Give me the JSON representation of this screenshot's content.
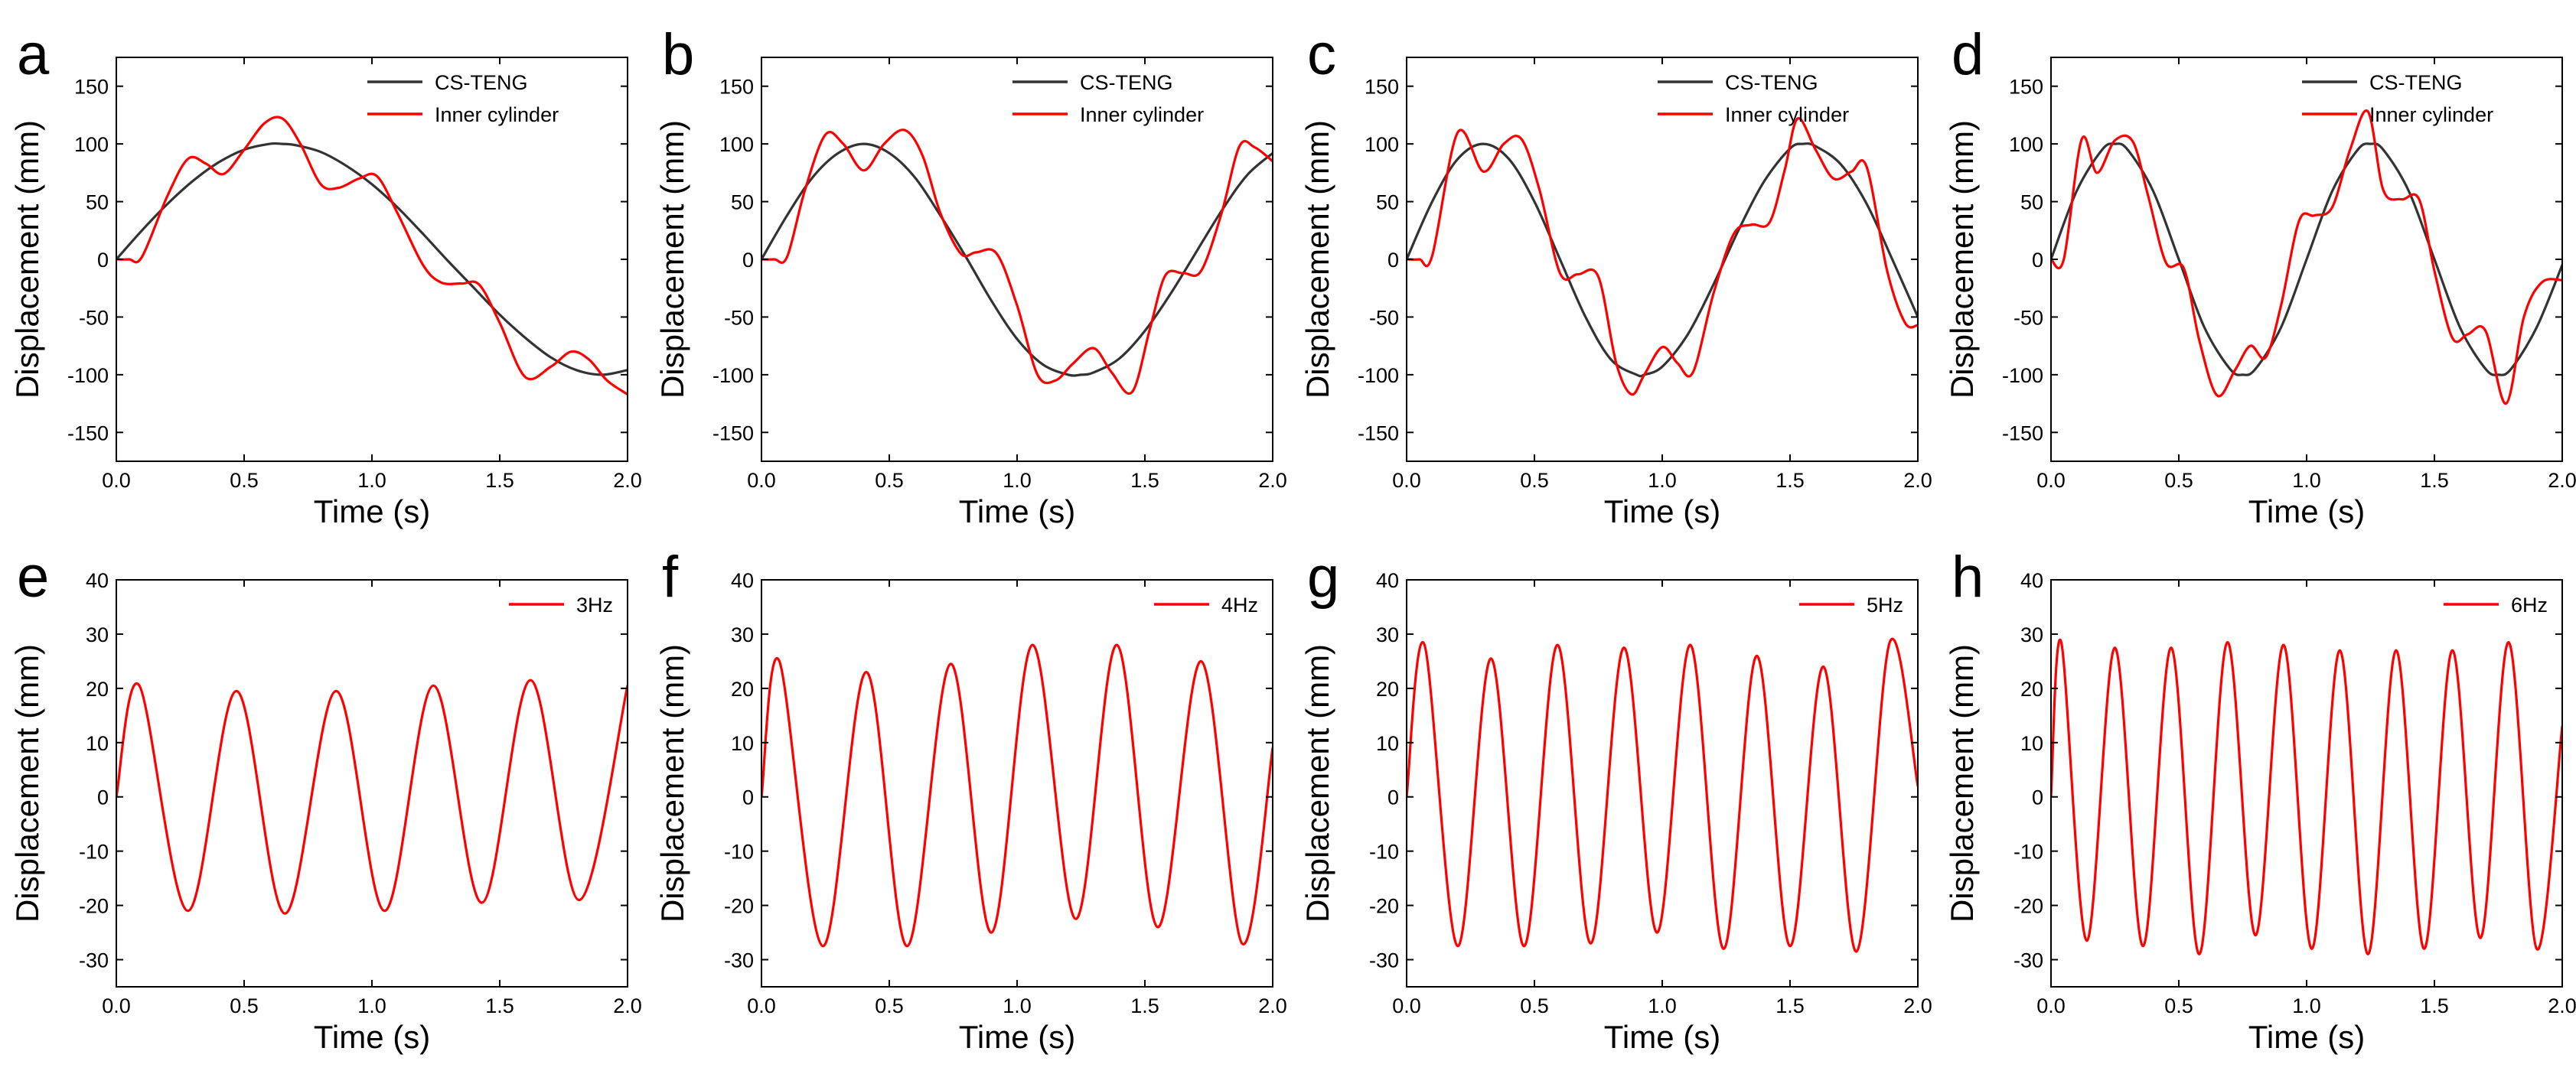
{
  "figure": {
    "background": "#ffffff"
  },
  "colors": {
    "cs_teng": "#333333",
    "inner_cylinder": "#ff0000",
    "axis": "#000000"
  },
  "chart_data": [
    {
      "panel": "a",
      "type": "line",
      "xlabel": "Time (s)",
      "ylabel": "Displacement (mm)",
      "xlim": [
        0,
        2
      ],
      "ylim": [
        -175,
        175
      ],
      "xticks": [
        0,
        0.5,
        1,
        1.5,
        2
      ],
      "xtick_labels": [
        "0.0",
        "0.5",
        "1.0",
        "1.5",
        "2.0"
      ],
      "yticks": [
        -150,
        -100,
        -50,
        0,
        50,
        100,
        150
      ],
      "ytick_labels": [
        "-150",
        "-100",
        "-50",
        "0",
        "50",
        "100",
        "150"
      ],
      "legend_position": "top-right",
      "series": [
        {
          "name": "CS-TENG",
          "color": "#333333",
          "x": [
            0,
            0.1,
            0.2,
            0.3,
            0.4,
            0.5,
            0.6,
            0.65,
            0.7,
            0.8,
            0.9,
            1.0,
            1.1,
            1.2,
            1.3,
            1.4,
            1.5,
            1.6,
            1.7,
            1.8,
            1.9,
            2.0
          ],
          "y": [
            0,
            25,
            48,
            68,
            84,
            95,
            100,
            100,
            99,
            93,
            81,
            65,
            45,
            22,
            -2,
            -25,
            -48,
            -68,
            -85,
            -96,
            -100,
            -96
          ]
        },
        {
          "name": "Inner cylinder",
          "color": "#ff0000",
          "x": [
            0,
            0.05,
            0.1,
            0.2,
            0.28,
            0.35,
            0.42,
            0.5,
            0.58,
            0.65,
            0.72,
            0.8,
            0.87,
            0.95,
            1.02,
            1.1,
            1.2,
            1.27,
            1.35,
            1.42,
            1.5,
            1.6,
            1.7,
            1.78,
            1.85,
            1.92,
            2.0
          ],
          "y": [
            0,
            0,
            2,
            55,
            87,
            83,
            74,
            95,
            118,
            122,
            100,
            65,
            62,
            70,
            72,
            40,
            -5,
            -20,
            -21,
            -22,
            -55,
            -102,
            -93,
            -80,
            -87,
            -105,
            -117
          ]
        }
      ]
    },
    {
      "panel": "b",
      "type": "line",
      "xlabel": "Time (s)",
      "ylabel": "Displacement (mm)",
      "xlim": [
        0,
        2
      ],
      "ylim": [
        -175,
        175
      ],
      "xticks": [
        0,
        0.5,
        1,
        1.5,
        2
      ],
      "xtick_labels": [
        "0.0",
        "0.5",
        "1.0",
        "1.5",
        "2.0"
      ],
      "yticks": [
        -150,
        -100,
        -50,
        0,
        50,
        100,
        150
      ],
      "ytick_labels": [
        "-150",
        "-100",
        "-50",
        "0",
        "50",
        "100",
        "150"
      ],
      "legend_position": "top-right",
      "series": [
        {
          "name": "CS-TENG",
          "color": "#333333",
          "x": [
            0,
            0.1,
            0.2,
            0.3,
            0.4,
            0.5,
            0.6,
            0.7,
            0.8,
            0.9,
            1.0,
            1.1,
            1.2,
            1.25,
            1.3,
            1.4,
            1.5,
            1.6,
            1.7,
            1.8,
            1.9,
            2.0
          ],
          "y": [
            0,
            38,
            71,
            92,
            100,
            92,
            71,
            38,
            2,
            -36,
            -69,
            -91,
            -100,
            -100,
            -98,
            -86,
            -62,
            -30,
            6,
            42,
            73,
            92
          ]
        },
        {
          "name": "Inner cylinder",
          "color": "#ff0000",
          "x": [
            0,
            0.05,
            0.1,
            0.17,
            0.25,
            0.32,
            0.4,
            0.48,
            0.56,
            0.63,
            0.7,
            0.78,
            0.84,
            0.92,
            1.0,
            1.08,
            1.15,
            1.22,
            1.3,
            1.37,
            1.45,
            1.52,
            1.58,
            1.65,
            1.72,
            1.8,
            1.87,
            1.93,
            2.0
          ],
          "y": [
            0,
            0,
            2,
            60,
            108,
            100,
            77,
            100,
            112,
            90,
            40,
            5,
            6,
            5,
            -40,
            -100,
            -105,
            -90,
            -77,
            -98,
            -115,
            -60,
            -14,
            -12,
            -10,
            40,
            98,
            97,
            85
          ]
        }
      ]
    },
    {
      "panel": "c",
      "type": "line",
      "xlabel": "Time (s)",
      "ylabel": "Displacement (mm)",
      "xlim": [
        0,
        2
      ],
      "ylim": [
        -175,
        175
      ],
      "xticks": [
        0,
        0.5,
        1,
        1.5,
        2
      ],
      "xtick_labels": [
        "0.0",
        "0.5",
        "1.0",
        "1.5",
        "2.0"
      ],
      "yticks": [
        -150,
        -100,
        -50,
        0,
        50,
        100,
        150
      ],
      "ytick_labels": [
        "-150",
        "-100",
        "-50",
        "0",
        "50",
        "100",
        "150"
      ],
      "legend_position": "top-right",
      "series": [
        {
          "name": "CS-TENG",
          "color": "#333333",
          "x": [
            0,
            0.1,
            0.2,
            0.3,
            0.4,
            0.5,
            0.6,
            0.7,
            0.8,
            0.9,
            0.93,
            1.0,
            1.1,
            1.2,
            1.3,
            1.4,
            1.5,
            1.55,
            1.6,
            1.7,
            1.8,
            1.9,
            2.0
          ],
          "y": [
            0,
            50,
            87,
            100,
            87,
            50,
            0,
            -50,
            -87,
            -100,
            -100,
            -93,
            -65,
            -22,
            26,
            68,
            96,
            100,
            98,
            82,
            48,
            0,
            -50
          ]
        },
        {
          "name": "Inner cylinder",
          "color": "#ff0000",
          "x": [
            0,
            0.05,
            0.1,
            0.2,
            0.3,
            0.38,
            0.45,
            0.52,
            0.6,
            0.67,
            0.75,
            0.82,
            0.88,
            0.93,
            1.0,
            1.06,
            1.12,
            1.2,
            1.28,
            1.35,
            1.42,
            1.48,
            1.53,
            1.6,
            1.67,
            1.74,
            1.8,
            1.88,
            1.95,
            2.0
          ],
          "y": [
            0,
            0,
            3,
            110,
            76,
            100,
            104,
            60,
            -12,
            -13,
            -15,
            -90,
            -117,
            -100,
            -76,
            -90,
            -98,
            -30,
            22,
            30,
            32,
            78,
            122,
            95,
            70,
            76,
            80,
            -10,
            -55,
            -57
          ]
        }
      ]
    },
    {
      "panel": "d",
      "type": "line",
      "xlabel": "Time (s)",
      "ylabel": "Displacement (mm)",
      "xlim": [
        0,
        2
      ],
      "ylim": [
        -175,
        175
      ],
      "xticks": [
        0,
        0.5,
        1,
        1.5,
        2
      ],
      "xtick_labels": [
        "0.0",
        "0.5",
        "1.0",
        "1.5",
        "2.0"
      ],
      "yticks": [
        -150,
        -100,
        -50,
        0,
        50,
        100,
        150
      ],
      "ytick_labels": [
        "-150",
        "-100",
        "-50",
        "0",
        "50",
        "100",
        "150"
      ],
      "legend_position": "top-right",
      "series": [
        {
          "name": "CS-TENG",
          "color": "#333333",
          "x": [
            0,
            0.1,
            0.2,
            0.25,
            0.3,
            0.4,
            0.5,
            0.6,
            0.7,
            0.75,
            0.8,
            0.9,
            1.0,
            1.1,
            1.2,
            1.25,
            1.3,
            1.4,
            1.5,
            1.6,
            1.7,
            1.75,
            1.8,
            1.9,
            2.0
          ],
          "y": [
            0,
            59,
            95,
            100,
            95,
            59,
            0,
            -59,
            -95,
            -100,
            -95,
            -59,
            0,
            59,
            95,
            100,
            95,
            59,
            0,
            -59,
            -95,
            -100,
            -95,
            -59,
            -5
          ]
        },
        {
          "name": "Inner cylinder",
          "color": "#ff0000",
          "x": [
            0,
            0.05,
            0.12,
            0.18,
            0.25,
            0.32,
            0.38,
            0.45,
            0.52,
            0.58,
            0.65,
            0.72,
            0.78,
            0.84,
            0.9,
            0.97,
            1.03,
            1.1,
            1.17,
            1.24,
            1.3,
            1.37,
            1.44,
            1.5,
            1.57,
            1.63,
            1.7,
            1.78,
            1.85,
            1.92,
            2.0
          ],
          "y": [
            0,
            0,
            104,
            75,
            103,
            102,
            55,
            -3,
            -8,
            -70,
            -118,
            -96,
            -75,
            -85,
            -40,
            33,
            38,
            45,
            95,
            128,
            60,
            52,
            52,
            -10,
            -68,
            -65,
            -62,
            -125,
            -50,
            -20,
            -18
          ]
        }
      ]
    },
    {
      "panel": "e",
      "type": "line",
      "xlabel": "Time (s)",
      "ylabel": "Displacement (mm)",
      "xlim": [
        0,
        2
      ],
      "ylim": [
        -35,
        40
      ],
      "xticks": [
        0,
        0.5,
        1,
        1.5,
        2
      ],
      "xtick_labels": [
        "0.0",
        "0.5",
        "1.0",
        "1.5",
        "2.0"
      ],
      "yticks": [
        -30,
        -20,
        -10,
        0,
        10,
        20,
        30,
        40
      ],
      "ytick_labels": [
        "-30",
        "-20",
        "-10",
        "0",
        "10",
        "20",
        "30",
        "40"
      ],
      "legend_position": "top-right",
      "series": [
        {
          "name": "3Hz",
          "color": "#ff0000",
          "x": [
            0,
            0.09,
            0.28,
            0.47,
            0.66,
            0.86,
            1.05,
            1.24,
            1.43,
            1.62,
            1.81,
            2.0
          ],
          "y": [
            0,
            20.5,
            -21,
            19.5,
            -21.5,
            19.5,
            -21,
            20.5,
            -19.5,
            21.5,
            -19,
            20.5
          ]
        }
      ]
    },
    {
      "panel": "f",
      "type": "line",
      "xlabel": "Time (s)",
      "ylabel": "Displacement (mm)",
      "xlim": [
        0,
        2
      ],
      "ylim": [
        -35,
        40
      ],
      "xticks": [
        0,
        0.5,
        1,
        1.5,
        2
      ],
      "xtick_labels": [
        "0.0",
        "0.5",
        "1.0",
        "1.5",
        "2.0"
      ],
      "yticks": [
        -30,
        -20,
        -10,
        0,
        10,
        20,
        30,
        40
      ],
      "ytick_labels": [
        "-30",
        "-20",
        "-10",
        "0",
        "10",
        "20",
        "30",
        "40"
      ],
      "legend_position": "top-right",
      "series": [
        {
          "name": "4Hz",
          "color": "#ff0000",
          "x": [
            0,
            0.07,
            0.24,
            0.41,
            0.57,
            0.74,
            0.9,
            1.06,
            1.23,
            1.39,
            1.55,
            1.72,
            1.88,
            2.0
          ],
          "y": [
            0,
            25,
            -27.5,
            23,
            -27.5,
            24.5,
            -25,
            28,
            -22.5,
            28,
            -24,
            25,
            -27,
            9
          ]
        }
      ]
    },
    {
      "panel": "g",
      "type": "line",
      "xlabel": "Time (s)",
      "ylabel": "Displacement (mm)",
      "xlim": [
        0,
        2
      ],
      "ylim": [
        -35,
        40
      ],
      "xticks": [
        0,
        0.5,
        1,
        1.5,
        2
      ],
      "xtick_labels": [
        "0.0",
        "0.5",
        "1.0",
        "1.5",
        "2.0"
      ],
      "yticks": [
        -30,
        -20,
        -10,
        0,
        10,
        20,
        30,
        40
      ],
      "ytick_labels": [
        "-30",
        "-20",
        "-10",
        "0",
        "10",
        "20",
        "30",
        "40"
      ],
      "legend_position": "top-right",
      "series": [
        {
          "name": "5Hz",
          "color": "#ff0000",
          "x": [
            0,
            0.07,
            0.2,
            0.33,
            0.46,
            0.59,
            0.72,
            0.85,
            0.98,
            1.11,
            1.24,
            1.37,
            1.5,
            1.63,
            1.76,
            1.89,
            2.0
          ],
          "y": [
            0,
            28,
            -27.5,
            25.5,
            -27.5,
            28,
            -27,
            27.5,
            -25,
            28,
            -28,
            26,
            -27.5,
            24,
            -28.5,
            28.5,
            2
          ]
        }
      ]
    },
    {
      "panel": "h",
      "type": "line",
      "xlabel": "Time (s)",
      "ylabel": "Displacement (mm)",
      "xlim": [
        0,
        2
      ],
      "ylim": [
        -35,
        40
      ],
      "xticks": [
        0,
        0.5,
        1,
        1.5,
        2
      ],
      "xtick_labels": [
        "0.0",
        "0.5",
        "1.0",
        "1.5",
        "2.0"
      ],
      "yticks": [
        -30,
        -20,
        -10,
        0,
        10,
        20,
        30,
        40
      ],
      "ytick_labels": [
        "-30",
        "-20",
        "-10",
        "0",
        "10",
        "20",
        "30",
        "40"
      ],
      "legend_position": "top-right",
      "series": [
        {
          "name": "6Hz",
          "color": "#ff0000",
          "x": [
            0,
            0.04,
            0.14,
            0.25,
            0.36,
            0.47,
            0.58,
            0.69,
            0.8,
            0.91,
            1.02,
            1.13,
            1.24,
            1.35,
            1.46,
            1.57,
            1.68,
            1.79,
            1.9,
            2.0
          ],
          "y": [
            0,
            28.5,
            -26.5,
            27.5,
            -27.5,
            27.5,
            -29,
            28.5,
            -25.5,
            28,
            -28,
            27,
            -29,
            27,
            -28,
            27,
            -26,
            28.5,
            -28,
            13
          ]
        }
      ]
    }
  ]
}
